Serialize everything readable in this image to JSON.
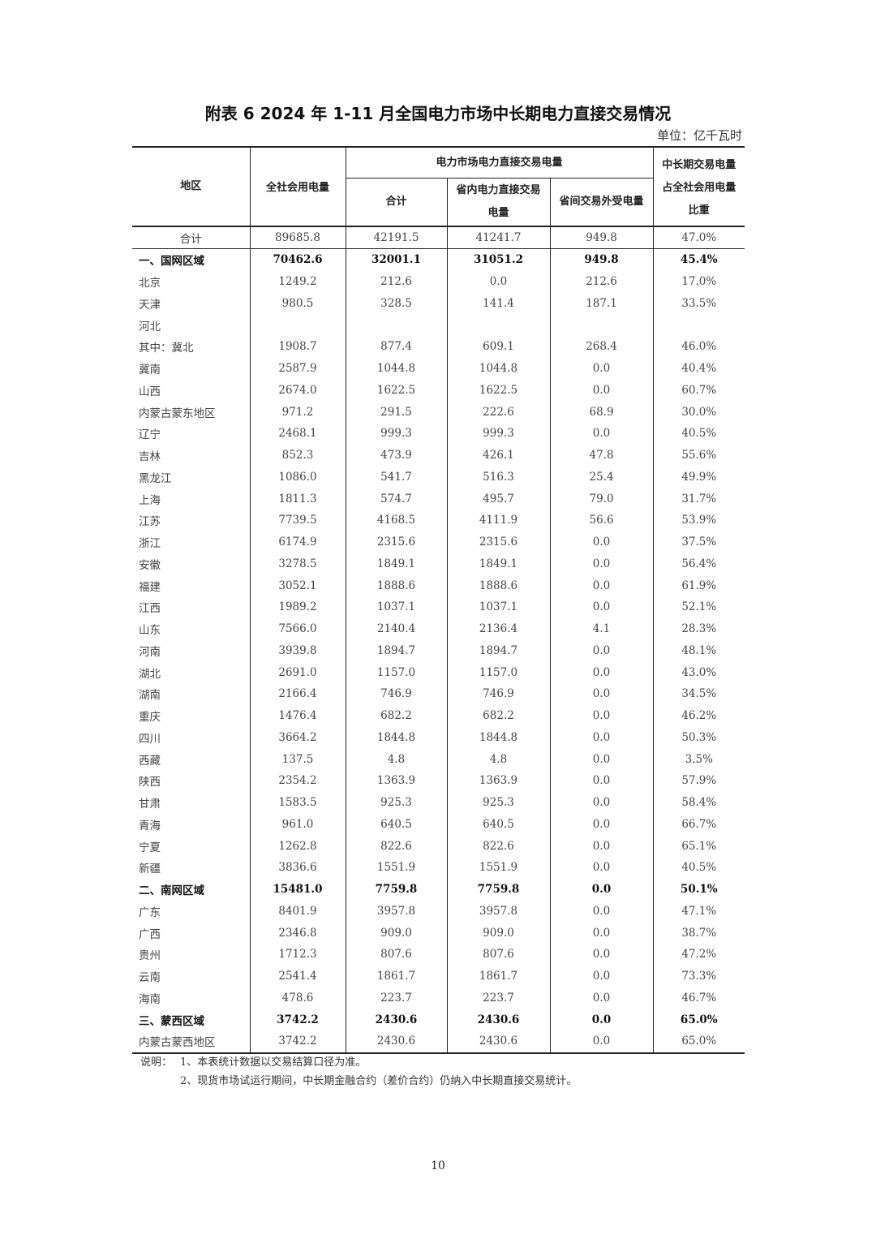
{
  "title": "附表 6   2024 年 1-11 月全国电力市场中长期电力直接交易情况",
  "unit": "单位：亿千瓦时",
  "headers": {
    "region": "地区",
    "total_consumption": "全社会用电量",
    "direct_trade_group": "电力市场电力直接交易电量",
    "subtotal": "合计",
    "intra_province": "省内电力直接交易电量",
    "inter_province": "省间交易外受电量",
    "share": "中长期交易电量占全社会用电量比重"
  },
  "rows": [
    {
      "name": "合计",
      "v": [
        "89685.8",
        "42191.5",
        "41241.7",
        "949.8",
        "47.0%"
      ],
      "style": "total"
    },
    {
      "name": "一、国网区域",
      "v": [
        "70462.6",
        "32001.1",
        "31051.2",
        "949.8",
        "45.4%"
      ],
      "style": "bold"
    },
    {
      "name": "北京",
      "v": [
        "1249.2",
        "212.6",
        "0.0",
        "212.6",
        "17.0%"
      ]
    },
    {
      "name": "天津",
      "v": [
        "980.5",
        "328.5",
        "141.4",
        "187.1",
        "33.5%"
      ]
    },
    {
      "name": "河北",
      "v": [
        "",
        "",
        "",
        "",
        ""
      ]
    },
    {
      "name": "其中：冀北",
      "v": [
        "1908.7",
        "877.4",
        "609.1",
        "268.4",
        "46.0%"
      ]
    },
    {
      "name": "冀南",
      "v": [
        "2587.9",
        "1044.8",
        "1044.8",
        "0.0",
        "40.4%"
      ]
    },
    {
      "name": "山西",
      "v": [
        "2674.0",
        "1622.5",
        "1622.5",
        "0.0",
        "60.7%"
      ]
    },
    {
      "name": "内蒙古蒙东地区",
      "v": [
        "971.2",
        "291.5",
        "222.6",
        "68.9",
        "30.0%"
      ]
    },
    {
      "name": "辽宁",
      "v": [
        "2468.1",
        "999.3",
        "999.3",
        "0.0",
        "40.5%"
      ]
    },
    {
      "name": "吉林",
      "v": [
        "852.3",
        "473.9",
        "426.1",
        "47.8",
        "55.6%"
      ]
    },
    {
      "name": "黑龙江",
      "v": [
        "1086.0",
        "541.7",
        "516.3",
        "25.4",
        "49.9%"
      ]
    },
    {
      "name": "上海",
      "v": [
        "1811.3",
        "574.7",
        "495.7",
        "79.0",
        "31.7%"
      ]
    },
    {
      "name": "江苏",
      "v": [
        "7739.5",
        "4168.5",
        "4111.9",
        "56.6",
        "53.9%"
      ]
    },
    {
      "name": "浙江",
      "v": [
        "6174.9",
        "2315.6",
        "2315.6",
        "0.0",
        "37.5%"
      ]
    },
    {
      "name": "安徽",
      "v": [
        "3278.5",
        "1849.1",
        "1849.1",
        "0.0",
        "56.4%"
      ]
    },
    {
      "name": "福建",
      "v": [
        "3052.1",
        "1888.6",
        "1888.6",
        "0.0",
        "61.9%"
      ]
    },
    {
      "name": "江西",
      "v": [
        "1989.2",
        "1037.1",
        "1037.1",
        "0.0",
        "52.1%"
      ]
    },
    {
      "name": "山东",
      "v": [
        "7566.0",
        "2140.4",
        "2136.4",
        "4.1",
        "28.3%"
      ]
    },
    {
      "name": "河南",
      "v": [
        "3939.8",
        "1894.7",
        "1894.7",
        "0.0",
        "48.1%"
      ]
    },
    {
      "name": "湖北",
      "v": [
        "2691.0",
        "1157.0",
        "1157.0",
        "0.0",
        "43.0%"
      ]
    },
    {
      "name": "湖南",
      "v": [
        "2166.4",
        "746.9",
        "746.9",
        "0.0",
        "34.5%"
      ]
    },
    {
      "name": "重庆",
      "v": [
        "1476.4",
        "682.2",
        "682.2",
        "0.0",
        "46.2%"
      ]
    },
    {
      "name": "四川",
      "v": [
        "3664.2",
        "1844.8",
        "1844.8",
        "0.0",
        "50.3%"
      ]
    },
    {
      "name": "西藏",
      "v": [
        "137.5",
        "4.8",
        "4.8",
        "0.0",
        "3.5%"
      ]
    },
    {
      "name": "陕西",
      "v": [
        "2354.2",
        "1363.9",
        "1363.9",
        "0.0",
        "57.9%"
      ]
    },
    {
      "name": "甘肃",
      "v": [
        "1583.5",
        "925.3",
        "925.3",
        "0.0",
        "58.4%"
      ]
    },
    {
      "name": "青海",
      "v": [
        "961.0",
        "640.5",
        "640.5",
        "0.0",
        "66.7%"
      ]
    },
    {
      "name": "宁夏",
      "v": [
        "1262.8",
        "822.6",
        "822.6",
        "0.0",
        "65.1%"
      ]
    },
    {
      "name": "新疆",
      "v": [
        "3836.6",
        "1551.9",
        "1551.9",
        "0.0",
        "40.5%"
      ]
    },
    {
      "name": "二、南网区域",
      "v": [
        "15481.0",
        "7759.8",
        "7759.8",
        "0.0",
        "50.1%"
      ],
      "style": "bold"
    },
    {
      "name": "广东",
      "v": [
        "8401.9",
        "3957.8",
        "3957.8",
        "0.0",
        "47.1%"
      ]
    },
    {
      "name": "广西",
      "v": [
        "2346.8",
        "909.0",
        "909.0",
        "0.0",
        "38.7%"
      ]
    },
    {
      "name": "贵州",
      "v": [
        "1712.3",
        "807.6",
        "807.6",
        "0.0",
        "47.2%"
      ]
    },
    {
      "name": "云南",
      "v": [
        "2541.4",
        "1861.7",
        "1861.7",
        "0.0",
        "73.3%"
      ]
    },
    {
      "name": "海南",
      "v": [
        "478.6",
        "223.7",
        "223.7",
        "0.0",
        "46.7%"
      ]
    },
    {
      "name": "三、蒙西区域",
      "v": [
        "3742.2",
        "2430.6",
        "2430.6",
        "0.0",
        "65.0%"
      ],
      "style": "bold"
    },
    {
      "name": "内蒙古蒙西地区",
      "v": [
        "3742.2",
        "2430.6",
        "2430.6",
        "0.0",
        "65.0%"
      ]
    }
  ],
  "notes": {
    "label": "说明：",
    "note1": "1、本表统计数据以交易结算口径为准。",
    "note2": "2、现货市场试运行期间，中长期金融合约（差价合约）仍纳入中长期直接交易统计。"
  },
  "page_number": "10"
}
